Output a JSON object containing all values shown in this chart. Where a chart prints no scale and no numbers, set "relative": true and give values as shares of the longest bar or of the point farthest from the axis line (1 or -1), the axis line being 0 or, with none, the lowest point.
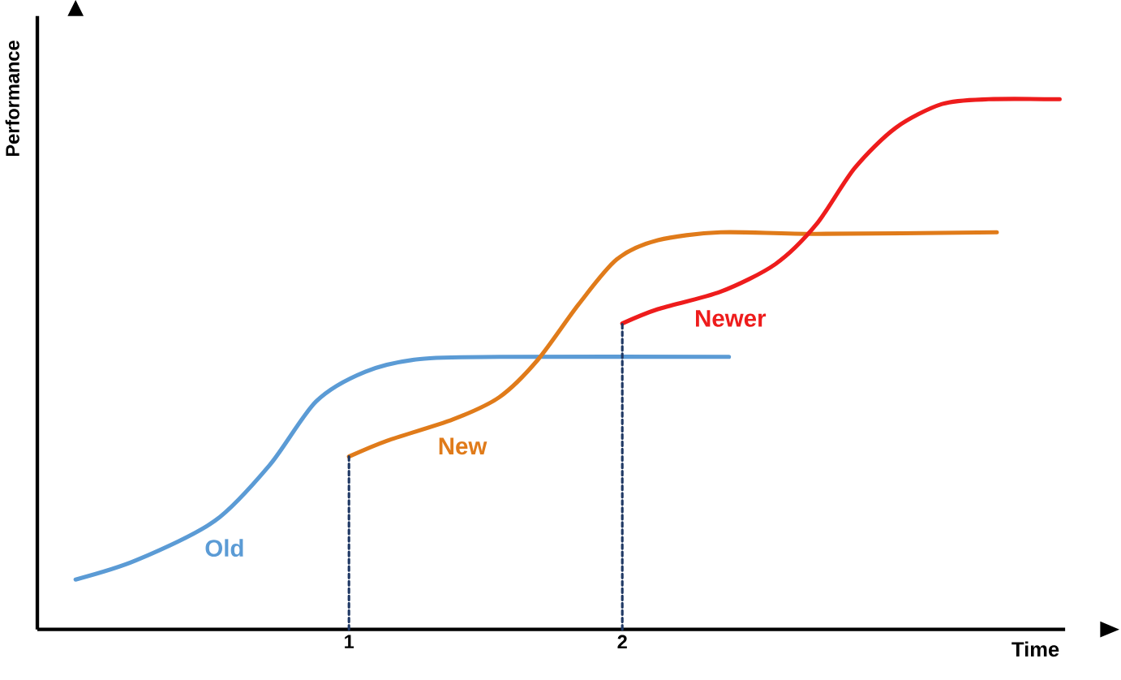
{
  "chart_data": {
    "type": "line",
    "relative": true,
    "xlabel": "Time",
    "ylabel": "Performance",
    "xlim": [
      -0.14,
      3.62
    ],
    "xticks": [
      1,
      2
    ],
    "series": [
      {
        "name": "Old",
        "color": "#5b9bd5",
        "x": [
          0,
          0.22,
          0.51,
          0.71,
          0.88,
          1.06,
          1.26,
          1.55,
          2.39
        ],
        "values": [
          0.094,
          0.13,
          0.205,
          0.31,
          0.43,
          0.486,
          0.51,
          0.514,
          0.514
        ]
      },
      {
        "name": "New",
        "color": "#e07b1a",
        "x": [
          1.0,
          1.14,
          1.38,
          1.55,
          1.69,
          1.84,
          1.98,
          2.13,
          2.36,
          2.71,
          3.37
        ],
        "values": [
          0.326,
          0.356,
          0.396,
          0.438,
          0.508,
          0.613,
          0.698,
          0.734,
          0.749,
          0.746,
          0.749
        ]
      },
      {
        "name": "Newer",
        "color": "#ee1c1c",
        "x": [
          2.0,
          2.13,
          2.36,
          2.56,
          2.71,
          2.85,
          3.0,
          3.17,
          3.34,
          3.6
        ],
        "values": [
          0.577,
          0.604,
          0.637,
          0.689,
          0.764,
          0.87,
          0.946,
          0.991,
          1.0,
          1.0
        ]
      },
      {
        "type": "line",
        "line_style": "dotted",
        "color": "#1f3864",
        "x": [
          1,
          1
        ],
        "values": [
          0,
          0.326
        ]
      },
      {
        "type": "line",
        "line_style": "dotted",
        "color": "#1f3864",
        "x": [
          2,
          2
        ],
        "values": [
          0,
          0.577
        ]
      }
    ]
  }
}
